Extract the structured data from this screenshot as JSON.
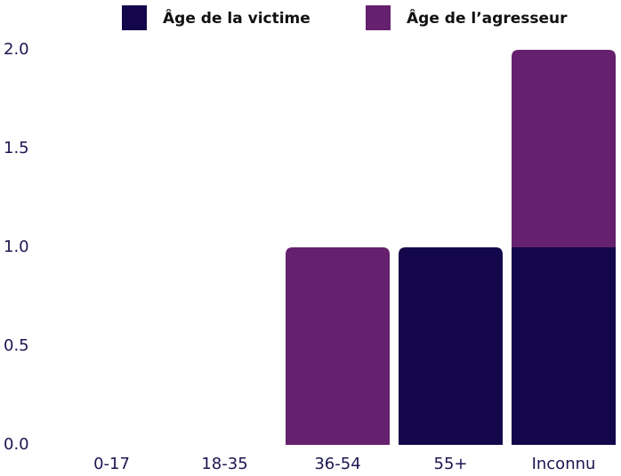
{
  "chart_data": {
    "type": "stacked_bar",
    "categories": [
      "0-17",
      "18-35",
      "36-54",
      "55+",
      "Inconnu"
    ],
    "series": [
      {
        "name": "Âge de la victime",
        "color": "#13064a",
        "values": [
          0,
          0,
          0,
          1,
          1
        ]
      },
      {
        "name": "Âge de l’agresseur",
        "color": "#65206e",
        "values": [
          0,
          0,
          1,
          0,
          1
        ]
      }
    ],
    "ylim": [
      0,
      2
    ],
    "yticks": [
      {
        "value": 0,
        "label": "0.0"
      },
      {
        "value": 0.5,
        "label": "0.5"
      },
      {
        "value": 1,
        "label": "1.0"
      },
      {
        "value": 1.5,
        "label": "1.5"
      },
      {
        "value": 2,
        "label": "2.0"
      }
    ],
    "legend": "top"
  }
}
